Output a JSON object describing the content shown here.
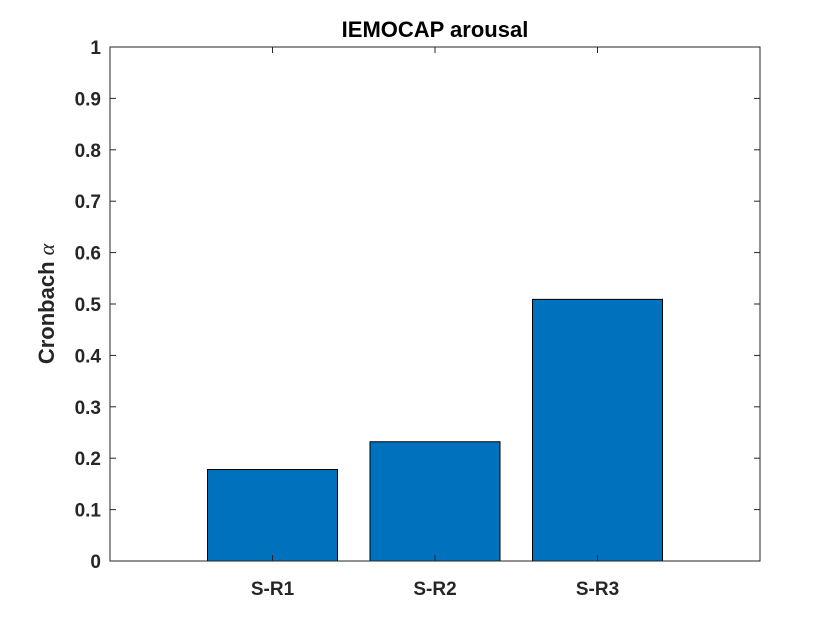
{
  "chart_data": {
    "type": "bar",
    "title": "IEMOCAP arousal",
    "xlabel": "",
    "ylabel": "Cronbach α",
    "categories": [
      "S-R1",
      "S-R2",
      "S-R3"
    ],
    "values": [
      0.178,
      0.232,
      0.509
    ],
    "ylim": [
      0,
      1
    ],
    "yticks": [
      "0",
      "0.1",
      "0.2",
      "0.3",
      "0.4",
      "0.5",
      "0.6",
      "0.7",
      "0.8",
      "0.9",
      "1"
    ],
    "xlim": [
      0,
      4
    ],
    "grid": false,
    "bar_color": "#0072BD",
    "bar_edge_color": "#000000"
  }
}
